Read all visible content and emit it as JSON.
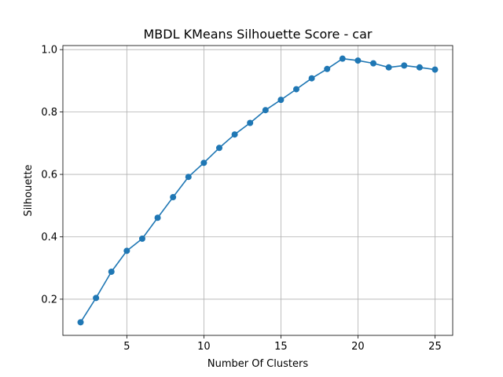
{
  "chart_data": {
    "type": "line",
    "title": "MBDL KMeans Silhouette Score - car",
    "xlabel": "Number Of Clusters",
    "ylabel": "Silhouette",
    "x": [
      2,
      3,
      4,
      5,
      6,
      7,
      8,
      9,
      10,
      11,
      12,
      13,
      14,
      15,
      16,
      17,
      18,
      19,
      20,
      21,
      22,
      23,
      24,
      25
    ],
    "series": [
      {
        "name": "",
        "values": [
          0.126,
          0.204,
          0.288,
          0.355,
          0.394,
          0.461,
          0.527,
          0.592,
          0.637,
          0.685,
          0.728,
          0.765,
          0.806,
          0.839,
          0.873,
          0.908,
          0.938,
          0.971,
          0.965,
          0.956,
          0.943,
          0.949,
          0.943,
          0.936
        ]
      }
    ],
    "xlim": [
      0.85,
      26.15
    ],
    "ylim": [
      0.084,
      1.013
    ],
    "xticks": [
      5,
      10,
      15,
      20,
      25
    ],
    "xtick_labels": [
      "5",
      "10",
      "15",
      "20",
      "25"
    ],
    "yticks": [
      0.2,
      0.4,
      0.6,
      0.8,
      1.0
    ],
    "ytick_labels": [
      "0.2",
      "0.4",
      "0.6",
      "0.8",
      "1.0"
    ],
    "grid": true,
    "line_color": "#1f77b4",
    "marker": "circle"
  }
}
